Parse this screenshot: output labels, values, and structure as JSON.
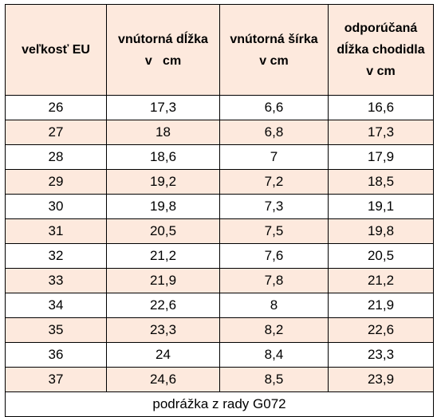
{
  "headers": [
    [
      "veľkosť EU"
    ],
    [
      "vnútorná dĺžka",
      "v   cm"
    ],
    [
      "vnútorná šírka",
      "v cm"
    ],
    [
      "odporúčaná",
      "dĺžka chodidla",
      "v cm"
    ]
  ],
  "rows": [
    [
      "26",
      "17,3",
      "6,6",
      "16,6"
    ],
    [
      "27",
      "18",
      "6,8",
      "17,3"
    ],
    [
      "28",
      "18,6",
      "7",
      "17,9"
    ],
    [
      "29",
      "19,2",
      "7,2",
      "18,5"
    ],
    [
      "30",
      "19,8",
      "7,3",
      "19,1"
    ],
    [
      "31",
      "20,5",
      "7,5",
      "19,8"
    ],
    [
      "32",
      "21,2",
      "7,6",
      "20,5"
    ],
    [
      "33",
      "21,9",
      "7,8",
      "21,2"
    ],
    [
      "34",
      "22,6",
      "8",
      "21,9"
    ],
    [
      "35",
      "23,3",
      "8,2",
      "22,6"
    ],
    [
      "36",
      "24",
      "8,4",
      "23,3"
    ],
    [
      "37",
      "24,6",
      "8,5",
      "23,9"
    ]
  ],
  "footnote": "podrážka z rady G072",
  "colors": {
    "header_bg": "#fde9dd",
    "alt_row_bg": "#fde9dd",
    "border": "#000000"
  }
}
